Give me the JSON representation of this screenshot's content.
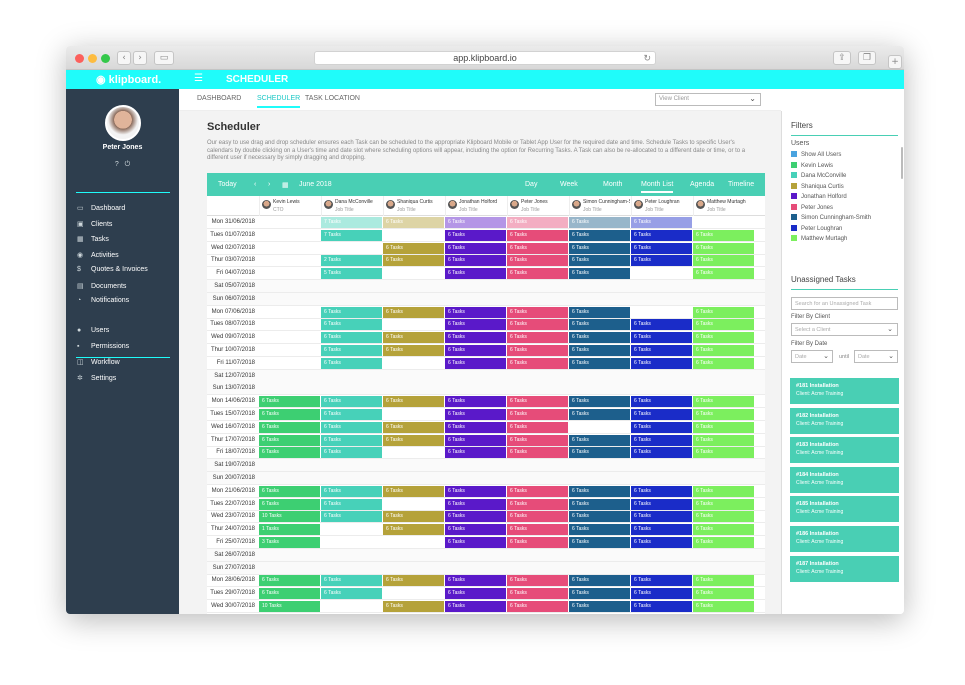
{
  "browser": {
    "url": "app.klipboard.io"
  },
  "app": {
    "logo": "klipboard.",
    "module_title": "SCHEDULER",
    "accent": "#1ffcfa"
  },
  "user": {
    "name": "Peter Jones",
    "help_icon": "?",
    "power_icon": "⏻"
  },
  "nav": {
    "main": [
      {
        "label": "Dashboard",
        "icon": "monitor-icon",
        "glyph": "▭"
      },
      {
        "label": "Clients",
        "icon": "clients-icon",
        "glyph": "▣"
      },
      {
        "label": "Tasks",
        "icon": "calendar-icon",
        "glyph": "▦"
      },
      {
        "label": "Activities",
        "icon": "activities-icon",
        "glyph": "◉"
      },
      {
        "label": "Quotes & Invoices",
        "icon": "quote-icon",
        "glyph": "$"
      },
      {
        "label": "Documents",
        "icon": "documents-icon",
        "glyph": "▤"
      },
      {
        "label": "Notifications",
        "icon": "bell-icon",
        "glyph": "◔"
      }
    ],
    "admin": [
      {
        "label": "Users",
        "icon": "user-icon",
        "glyph": "●"
      },
      {
        "label": "Permissions",
        "icon": "lock-icon",
        "glyph": "▪"
      },
      {
        "label": "Workflow",
        "icon": "workflow-icon",
        "glyph": "◫"
      },
      {
        "label": "Settings",
        "icon": "gear-icon",
        "glyph": "✲"
      }
    ]
  },
  "subnav": {
    "tabs": [
      "DASHBOARD",
      "SCHEDULER",
      "TASK LOCATION"
    ],
    "active": 1,
    "view_client_placeholder": "View Client"
  },
  "page": {
    "title": "Scheduler",
    "description": "Our easy to use drag and drop scheduler ensures each Task can be scheduled to the appropriate Klipboard Mobile or Tablet App User for the required date and time. Schedule Tasks to specific User's calendars by double clicking on a User's time and date slot where scheduling options will appear, including the option for Recurring Tasks. A Task can also be re-allocated to a different date or time, or to a different user if necessary by simply dragging and dropping."
  },
  "calendar": {
    "today": "Today",
    "month": "June 2018",
    "views": [
      "Day",
      "Week",
      "Month",
      "Month List",
      "Agenda",
      "Timeline"
    ],
    "active_view": "Month List",
    "people": [
      {
        "name": "Kevin Lewis",
        "title": "CTO",
        "color": "#3dcf72"
      },
      {
        "name": "Dana McConville",
        "title": "Job Title",
        "color": "#47d1b9"
      },
      {
        "name": "Shaniqua Curtis",
        "title": "Job Title",
        "color": "#b5a23a"
      },
      {
        "name": "Jonathan Holford",
        "title": "Job Title",
        "color": "#5a19c9"
      },
      {
        "name": "Peter Jones",
        "title": "Job Title",
        "color": "#e64c79"
      },
      {
        "name": "Simon Cunningham-Smith",
        "title": "Job Title",
        "color": "#1d5f8c"
      },
      {
        "name": "Peter Loughran",
        "title": "Job Title",
        "color": "#1a2cc8"
      },
      {
        "name": "Matthew Murtagh",
        "title": "Job Title",
        "color": "#7cef5e"
      }
    ],
    "rows": [
      {
        "date": "Mon 31/06/2018",
        "cells": [
          "",
          "7 Tasks",
          "6 Tasks",
          "6 Tasks",
          "6 Tasks",
          "6 Tasks",
          "6 Tasks",
          ""
        ],
        "faded": true
      },
      {
        "date": "Tues 01/07/2018",
        "cells": [
          "",
          "7 Tasks",
          "",
          "6 Tasks",
          "6 Tasks",
          "6 Tasks",
          "6 Tasks",
          "6 Tasks"
        ]
      },
      {
        "date": "Wed 02/07/2018",
        "cells": [
          "",
          "",
          "6 Tasks",
          "6 Tasks",
          "6 Tasks",
          "6 Tasks",
          "6 Tasks",
          "6 Tasks"
        ]
      },
      {
        "date": "Thur 03/07/2018",
        "cells": [
          "",
          "2 Tasks",
          "6 Tasks",
          "6 Tasks",
          "6 Tasks",
          "6 Tasks",
          "6 Tasks",
          "6 Tasks"
        ]
      },
      {
        "date": "Fri 04/07/2018",
        "cells": [
          "",
          "5 Tasks",
          "",
          "6 Tasks",
          "6 Tasks",
          "6 Tasks",
          "",
          "6 Tasks"
        ]
      },
      {
        "date": "Sat 05/07/2018",
        "cells": [
          "",
          "",
          "",
          "",
          "",
          "",
          "",
          ""
        ],
        "weekend": true
      },
      {
        "date": "Sun 06/07/2018",
        "cells": [
          "",
          "",
          "",
          "",
          "",
          "",
          "",
          ""
        ],
        "weekend": true
      },
      {
        "date": "Mon 07/06/2018",
        "cells": [
          "",
          "6 Tasks",
          "6 Tasks",
          "6 Tasks",
          "6 Tasks",
          "6 Tasks",
          "",
          "6 Tasks"
        ]
      },
      {
        "date": "Tues 08/07/2018",
        "cells": [
          "",
          "6 Tasks",
          "",
          "6 Tasks",
          "6 Tasks",
          "6 Tasks",
          "6 Tasks",
          "6 Tasks"
        ]
      },
      {
        "date": "Wed 09/07/2018",
        "cells": [
          "",
          "6 Tasks",
          "6 Tasks",
          "6 Tasks",
          "6 Tasks",
          "6 Tasks",
          "6 Tasks",
          "6 Tasks"
        ]
      },
      {
        "date": "Thur 10/07/2018",
        "cells": [
          "",
          "6 Tasks",
          "6 Tasks",
          "6 Tasks",
          "6 Tasks",
          "6 Tasks",
          "6 Tasks",
          "6 Tasks"
        ]
      },
      {
        "date": "Fri 11/07/2018",
        "cells": [
          "",
          "6 Tasks",
          "",
          "6 Tasks",
          "6 Tasks",
          "6 Tasks",
          "6 Tasks",
          "6 Tasks"
        ]
      },
      {
        "date": "Sat 12/07/2018",
        "cells": [
          "",
          "",
          "",
          "",
          "",
          "",
          "",
          ""
        ],
        "weekend": true
      },
      {
        "date": "Sun 13/07/2018",
        "cells": [
          "",
          "",
          "",
          "",
          "",
          "",
          "",
          ""
        ],
        "weekend": true
      },
      {
        "date": "Mon 14/06/2018",
        "cells": [
          "6 Tasks",
          "6 Tasks",
          "6 Tasks",
          "6 Tasks",
          "6 Tasks",
          "6 Tasks",
          "6 Tasks",
          "6 Tasks"
        ]
      },
      {
        "date": "Tues 15/07/2018",
        "cells": [
          "6 Tasks",
          "6 Tasks",
          "",
          "6 Tasks",
          "6 Tasks",
          "6 Tasks",
          "6 Tasks",
          "6 Tasks"
        ]
      },
      {
        "date": "Wed 16/07/2018",
        "cells": [
          "6 Tasks",
          "6 Tasks",
          "6 Tasks",
          "6 Tasks",
          "6 Tasks",
          "",
          "6 Tasks",
          "6 Tasks"
        ]
      },
      {
        "date": "Thur 17/07/2018",
        "cells": [
          "6 Tasks",
          "6 Tasks",
          "6 Tasks",
          "6 Tasks",
          "6 Tasks",
          "6 Tasks",
          "6 Tasks",
          "6 Tasks"
        ]
      },
      {
        "date": "Fri 18/07/2018",
        "cells": [
          "6 Tasks",
          "6 Tasks",
          "",
          "6 Tasks",
          "6 Tasks",
          "6 Tasks",
          "6 Tasks",
          "6 Tasks"
        ]
      },
      {
        "date": "Sat 19/07/2018",
        "cells": [
          "",
          "",
          "",
          "",
          "",
          "",
          "",
          ""
        ],
        "weekend": true
      },
      {
        "date": "Sun 20/07/2018",
        "cells": [
          "",
          "",
          "",
          "",
          "",
          "",
          "",
          ""
        ],
        "weekend": true
      },
      {
        "date": "Mon 21/06/2018",
        "cells": [
          "6 Tasks",
          "6 Tasks",
          "6 Tasks",
          "6 Tasks",
          "6 Tasks",
          "6 Tasks",
          "6 Tasks",
          "6 Tasks"
        ]
      },
      {
        "date": "Tues 22/07/2018",
        "cells": [
          "6 Tasks",
          "6 Tasks",
          "",
          "6 Tasks",
          "6 Tasks",
          "6 Tasks",
          "6 Tasks",
          "6 Tasks"
        ]
      },
      {
        "date": "Wed 23/07/2018",
        "cells": [
          "10 Tasks",
          "6 Tasks",
          "6 Tasks",
          "6 Tasks",
          "6 Tasks",
          "6 Tasks",
          "6 Tasks",
          "6 Tasks"
        ]
      },
      {
        "date": "Thur 24/07/2018",
        "cells": [
          "1 Tasks",
          "",
          "6 Tasks",
          "6 Tasks",
          "6 Tasks",
          "6 Tasks",
          "6 Tasks",
          "6 Tasks"
        ]
      },
      {
        "date": "Fri 25/07/2018",
        "cells": [
          "3 Tasks",
          "",
          "",
          "6 Tasks",
          "6 Tasks",
          "6 Tasks",
          "6 Tasks",
          "6 Tasks"
        ]
      },
      {
        "date": "Sat 26/07/2018",
        "cells": [
          "",
          "",
          "",
          "",
          "",
          "",
          "",
          ""
        ],
        "weekend": true
      },
      {
        "date": "Sun 27/07/2018",
        "cells": [
          "",
          "",
          "",
          "",
          "",
          "",
          "",
          ""
        ],
        "weekend": true
      },
      {
        "date": "Mon 28/06/2018",
        "cells": [
          "6 Tasks",
          "6 Tasks",
          "6 Tasks",
          "6 Tasks",
          "6 Tasks",
          "6 Tasks",
          "6 Tasks",
          "6 Tasks"
        ]
      },
      {
        "date": "Tues 29/07/2018",
        "cells": [
          "6 Tasks",
          "6 Tasks",
          "",
          "6 Tasks",
          "6 Tasks",
          "6 Tasks",
          "6 Tasks",
          "6 Tasks"
        ]
      },
      {
        "date": "Wed 30/07/2018",
        "cells": [
          "10 Tasks",
          "",
          "6 Tasks",
          "6 Tasks",
          "6 Tasks",
          "6 Tasks",
          "6 Tasks",
          "6 Tasks"
        ]
      }
    ]
  },
  "filters": {
    "title": "Filters",
    "users_label": "Users",
    "users": [
      {
        "label": "Show All Users",
        "color": "#4aa3df"
      },
      {
        "label": "Kevin Lewis",
        "color": "#3dcf72"
      },
      {
        "label": "Dana McConville",
        "color": "#47d1b9"
      },
      {
        "label": "Shaniqua Curtis",
        "color": "#b5a23a"
      },
      {
        "label": "Jonathan Holford",
        "color": "#5a19c9"
      },
      {
        "label": "Peter Jones",
        "color": "#e64c79"
      },
      {
        "label": "Simon Cunningham-Smith",
        "color": "#1d5f8c"
      },
      {
        "label": "Peter Loughran",
        "color": "#1a2cc8"
      },
      {
        "label": "Matthew Murtagh",
        "color": "#7cef5e"
      }
    ],
    "unassigned_title": "Unassigned Tasks",
    "search_placeholder": "Search for an Unassigned Task",
    "filter_client_label": "Filter By Client",
    "client_placeholder": "Select a Client",
    "filter_date_label": "Filter By Date",
    "date_from": "Date",
    "until": "until",
    "date_to": "Date",
    "tasks": [
      {
        "title": "#181 Installation",
        "client": "Client: Acme Training"
      },
      {
        "title": "#182 Installation",
        "client": "Client: Acme Training"
      },
      {
        "title": "#183 Installation",
        "client": "Client: Acme Training"
      },
      {
        "title": "#184 Installation",
        "client": "Client: Acme Training"
      },
      {
        "title": "#185 Installation",
        "client": "Client: Acme Training"
      },
      {
        "title": "#186 Installation",
        "client": "Client: Acme Training"
      },
      {
        "title": "#187 Installation",
        "client": "Client: Acme Training"
      }
    ]
  }
}
